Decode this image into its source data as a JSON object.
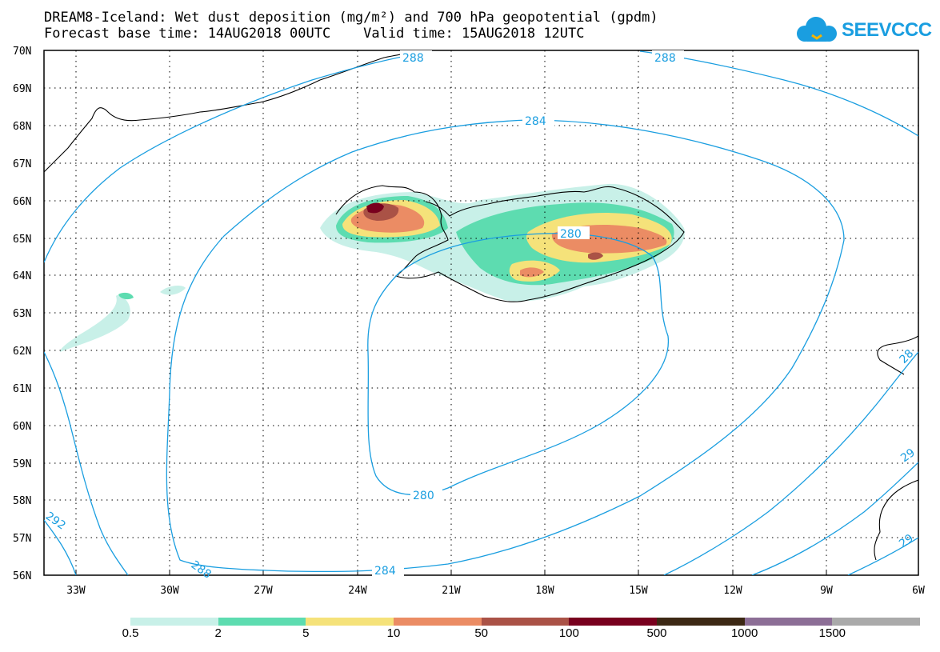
{
  "title": {
    "line1": "DREAM8-Iceland: Wet dust deposition (mg/m²) and 700 hPa geopotential (gpdm)",
    "line2": "Forecast base time: 14AUG2018 00UTC    Valid time: 15AUG2018 12UTC"
  },
  "logo": {
    "text": "SEEVCCC",
    "icon": "cloud-icon"
  },
  "map": {
    "lat_labels": [
      "70N",
      "69N",
      "68N",
      "67N",
      "66N",
      "65N",
      "64N",
      "63N",
      "62N",
      "61N",
      "60N",
      "59N",
      "58N",
      "57N",
      "56N"
    ],
    "lon_labels": [
      "33W",
      "30W",
      "27W",
      "24W",
      "21W",
      "18W",
      "15W",
      "12W",
      "9W",
      "6W"
    ],
    "lat_range": [
      56,
      70
    ],
    "lon_range": [
      -34.1,
      -6
    ],
    "contour_color": "#1a9ee0",
    "contour_labels": [
      "288",
      "288",
      "284",
      "280",
      "280",
      "284",
      "288",
      "292",
      "28",
      "29",
      "29"
    ],
    "region": "Iceland"
  },
  "legend": {
    "colors": [
      "#c8f0e8",
      "#5ddcb0",
      "#f5e27a",
      "#eb8c64",
      "#aa5246",
      "#78001e",
      "#3c2814",
      "#8c6e96",
      "#aaaaaa"
    ],
    "labels": [
      "0.5",
      "2",
      "5",
      "10",
      "50",
      "100",
      "500",
      "1000",
      "1500"
    ]
  }
}
